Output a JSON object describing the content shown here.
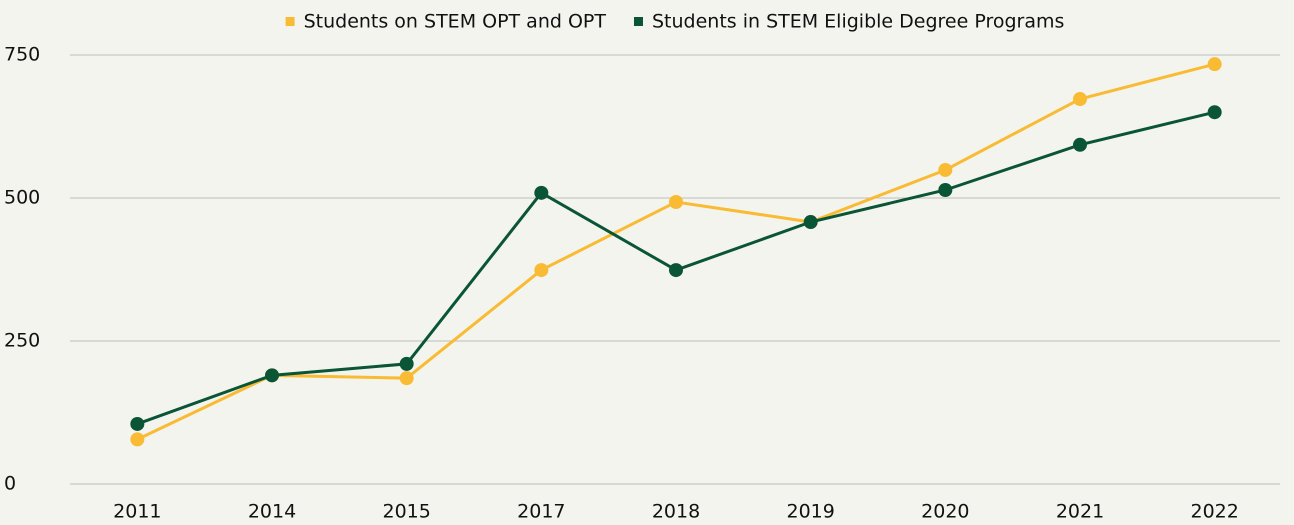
{
  "chart_data": {
    "type": "line",
    "categories": [
      "2011",
      "2014",
      "2015",
      "2017",
      "2018",
      "2019",
      "2020",
      "2021",
      "2022"
    ],
    "series": [
      {
        "name": "Students on STEM OPT and OPT",
        "color": "#f8bb33",
        "values": [
          78,
          190,
          185,
          374,
          493,
          458,
          549,
          673,
          734
        ]
      },
      {
        "name": "Students in STEM Eligible Degree Programs",
        "color": "#0b5537",
        "values": [
          105,
          190,
          210,
          509,
          374,
          458,
          514,
          593,
          650
        ]
      }
    ],
    "ylim": [
      0,
      750
    ],
    "yticks": [
      0,
      250,
      500,
      750
    ],
    "grid": true,
    "legend": "top"
  }
}
